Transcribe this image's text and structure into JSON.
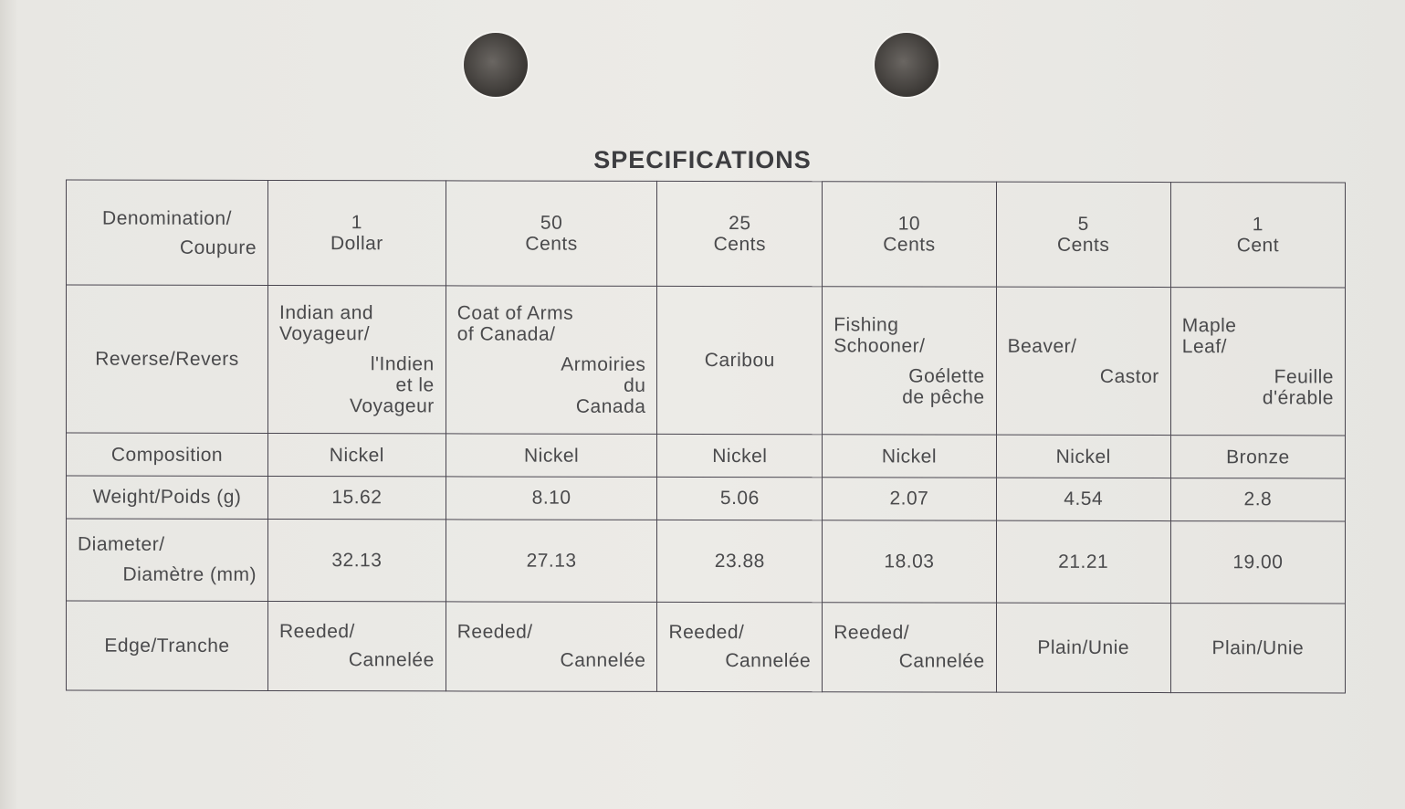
{
  "title": "SPECIFICATIONS",
  "header_row": {
    "label": {
      "top": "Denomination/",
      "bottom": "Coupure"
    },
    "values": [
      "1\nDollar",
      "50\nCents",
      "25\nCents",
      "10\nCents",
      "5\nCents",
      "1\nCent"
    ]
  },
  "reverse_row": {
    "label": "Reverse/Revers",
    "values": [
      {
        "top": "Indian and\nVoyageur/",
        "bottom": "l'Indien\net le\nVoyageur"
      },
      {
        "top": "Coat of Arms\nof Canada/",
        "bottom": "Armoiries\ndu\nCanada"
      },
      {
        "top": "Caribou",
        "bottom": ""
      },
      {
        "top": "Fishing\nSchooner/",
        "bottom": "Goélette\nde pêche"
      },
      {
        "top": "Beaver/",
        "bottom": "Castor"
      },
      {
        "top": "Maple\nLeaf/",
        "bottom": "Feuille\nd'érable"
      }
    ]
  },
  "composition_row": {
    "label": "Composition",
    "values": [
      "Nickel",
      "Nickel",
      "Nickel",
      "Nickel",
      "Nickel",
      "Bronze"
    ]
  },
  "weight_row": {
    "label": "Weight/Poids (g)",
    "values": [
      "15.62",
      "8.10",
      "5.06",
      "2.07",
      "4.54",
      "2.8"
    ]
  },
  "diameter_row": {
    "label": {
      "top": "Diameter/",
      "bottom": "Diamètre (mm)"
    },
    "values": [
      "32.13",
      "27.13",
      "23.88",
      "18.03",
      "21.21",
      "19.00"
    ]
  },
  "edge_row": {
    "label": "Edge/Tranche",
    "values": [
      {
        "top": "Reeded/",
        "bottom": "Cannelée"
      },
      {
        "top": "Reeded/",
        "bottom": "Cannelée"
      },
      {
        "top": "Reeded/",
        "bottom": "Cannelée"
      },
      {
        "top": "Reeded/",
        "bottom": "Cannelée"
      },
      {
        "top": "Plain/Unie",
        "bottom": ""
      },
      {
        "top": "Plain/Unie",
        "bottom": ""
      }
    ]
  }
}
